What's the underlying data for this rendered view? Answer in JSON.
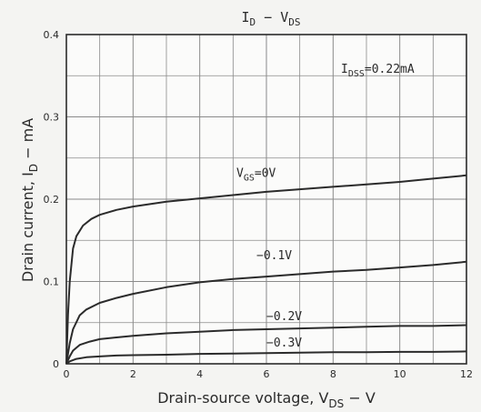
{
  "chart_data": {
    "type": "line",
    "title": "I₀ − V₀ₛ",
    "title_parts": {
      "i": "I",
      "i_sub": "D",
      "sep": " − ",
      "v": "V",
      "v_sub": "DS"
    },
    "xlabel": {
      "main": "Drain-source voltage, V",
      "sub": "DS",
      "tail": " − V"
    },
    "ylabel": {
      "main": "Drain current, I",
      "sub": "D",
      "tail": " − mA"
    },
    "xlim": [
      0,
      12
    ],
    "ylim": [
      0,
      0.4
    ],
    "xticks": [
      0,
      2,
      4,
      6,
      8,
      10,
      12
    ],
    "xtick_labels": [
      "0",
      "2",
      "4",
      "6",
      "8",
      "10",
      "12"
    ],
    "yticks": [
      0,
      0.1,
      0.2,
      0.3,
      0.4
    ],
    "ytick_labels": [
      "0",
      "0.1",
      "0.2",
      "0.3",
      "0.4"
    ],
    "grid": true,
    "annotation": {
      "main": "I",
      "sub": "DSS",
      "tail": "=0.22mA"
    },
    "series": [
      {
        "name": "V₀ₛ=0V",
        "label": {
          "main": "V",
          "sub": "GS",
          "tail": "=0V"
        },
        "x": [
          0,
          0.05,
          0.1,
          0.2,
          0.3,
          0.5,
          0.75,
          1,
          1.5,
          2,
          3,
          4,
          5,
          6,
          7,
          8,
          9,
          10,
          11,
          12
        ],
        "y": [
          0,
          0.06,
          0.1,
          0.14,
          0.155,
          0.168,
          0.176,
          0.181,
          0.187,
          0.191,
          0.197,
          0.201,
          0.205,
          0.209,
          0.212,
          0.215,
          0.218,
          0.221,
          0.225,
          0.229
        ]
      },
      {
        "name": "−0.1V",
        "label": {
          "main": "−0.1V",
          "sub": "",
          "tail": ""
        },
        "x": [
          0,
          0.1,
          0.2,
          0.4,
          0.6,
          1,
          1.5,
          2,
          3,
          4,
          5,
          6,
          7,
          8,
          9,
          10,
          11,
          12
        ],
        "y": [
          0,
          0.025,
          0.042,
          0.059,
          0.066,
          0.074,
          0.08,
          0.085,
          0.093,
          0.099,
          0.103,
          0.106,
          0.109,
          0.112,
          0.114,
          0.117,
          0.12,
          0.124
        ]
      },
      {
        "name": "−0.2V",
        "label": {
          "main": "−0.2V",
          "sub": "",
          "tail": ""
        },
        "x": [
          0,
          0.1,
          0.2,
          0.4,
          0.7,
          1,
          1.5,
          2,
          3,
          4,
          5,
          6,
          7,
          8,
          9,
          10,
          11,
          12
        ],
        "y": [
          0,
          0.009,
          0.016,
          0.023,
          0.027,
          0.03,
          0.032,
          0.034,
          0.037,
          0.039,
          0.041,
          0.042,
          0.043,
          0.044,
          0.045,
          0.046,
          0.046,
          0.047
        ]
      },
      {
        "name": "−0.3V",
        "label": {
          "main": "−0.3V",
          "sub": "",
          "tail": ""
        },
        "x": [
          0,
          0.1,
          0.3,
          0.6,
          1,
          1.5,
          2,
          3,
          4,
          5,
          6,
          7,
          8,
          9,
          10,
          11,
          12
        ],
        "y": [
          0,
          0.003,
          0.006,
          0.008,
          0.009,
          0.01,
          0.0105,
          0.011,
          0.012,
          0.0125,
          0.013,
          0.0135,
          0.014,
          0.014,
          0.0145,
          0.0145,
          0.015
        ]
      }
    ],
    "colors": {
      "line": "#2b2b2b",
      "grid": "#8a8a8a",
      "background": "#f4f4f2",
      "frame": "#2b2b2b"
    }
  }
}
